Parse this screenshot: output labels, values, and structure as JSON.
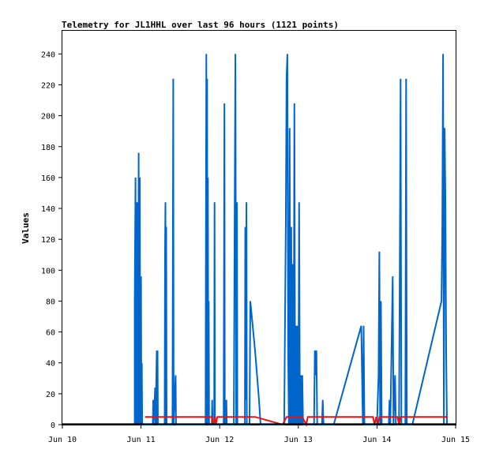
{
  "chart_data": {
    "type": "line",
    "title": "Telemetry for JL1HHL over last 96 hours (1121 points)",
    "xlabel": "",
    "ylabel": "Values",
    "x_ticks": [
      "Jun 10",
      "Jun 11",
      "Jun 12",
      "Jun 13",
      "Jun 14",
      "Jun 15"
    ],
    "x_range_days": [
      10,
      15
    ],
    "y_ticks": [
      0,
      20,
      40,
      60,
      80,
      100,
      120,
      140,
      160,
      180,
      200,
      220,
      240
    ],
    "ylim": [
      0,
      255
    ],
    "grid": false,
    "colors": {
      "series1": "#0066cc",
      "series2": "#ee1111",
      "series3": "#000000"
    },
    "series": [
      {
        "color": "#0066cc",
        "points": [
          [
            10.92,
            0
          ],
          [
            10.92,
            80
          ],
          [
            10.93,
            160
          ],
          [
            10.935,
            0
          ],
          [
            10.94,
            144
          ],
          [
            10.95,
            0
          ],
          [
            10.955,
            144
          ],
          [
            10.96,
            60
          ],
          [
            10.965,
            0
          ],
          [
            10.97,
            176
          ],
          [
            10.975,
            0
          ],
          [
            10.98,
            112
          ],
          [
            10.985,
            160
          ],
          [
            10.99,
            0
          ],
          [
            11.0,
            96
          ],
          [
            11.005,
            0
          ],
          [
            11.01,
            40
          ],
          [
            11.015,
            0
          ],
          [
            11.15,
            0
          ],
          [
            11.155,
            16
          ],
          [
            11.16,
            0
          ],
          [
            11.18,
            24
          ],
          [
            11.185,
            0
          ],
          [
            11.2,
            48
          ],
          [
            11.205,
            0
          ],
          [
            11.21,
            48
          ],
          [
            11.215,
            0
          ],
          [
            11.3,
            0
          ],
          [
            11.305,
            112
          ],
          [
            11.31,
            144
          ],
          [
            11.315,
            0
          ],
          [
            11.32,
            128
          ],
          [
            11.325,
            0
          ],
          [
            11.4,
            0
          ],
          [
            11.41,
            224
          ],
          [
            11.415,
            0
          ],
          [
            11.44,
            32
          ],
          [
            11.445,
            0
          ],
          [
            11.82,
            0
          ],
          [
            11.825,
            128
          ],
          [
            11.83,
            240
          ],
          [
            11.835,
            0
          ],
          [
            11.84,
            224
          ],
          [
            11.845,
            0
          ],
          [
            11.85,
            160
          ],
          [
            11.855,
            0
          ],
          [
            11.86,
            80
          ],
          [
            11.865,
            0
          ],
          [
            11.9,
            0
          ],
          [
            11.905,
            16
          ],
          [
            11.91,
            0
          ],
          [
            11.93,
            0
          ],
          [
            11.935,
            144
          ],
          [
            11.94,
            0
          ],
          [
            12.05,
            0
          ],
          [
            12.055,
            104
          ],
          [
            12.06,
            208
          ],
          [
            12.065,
            0
          ],
          [
            12.08,
            0
          ],
          [
            12.085,
            16
          ],
          [
            12.09,
            0
          ],
          [
            12.18,
            0
          ],
          [
            12.19,
            128
          ],
          [
            12.2,
            240
          ],
          [
            12.21,
            0
          ],
          [
            12.22,
            144
          ],
          [
            12.225,
            0
          ],
          [
            12.32,
            0
          ],
          [
            12.325,
            128
          ],
          [
            12.33,
            16
          ],
          [
            12.34,
            144
          ],
          [
            12.345,
            0
          ],
          [
            12.38,
            0
          ],
          [
            12.39,
            80
          ],
          [
            12.45,
            48
          ],
          [
            12.5,
            16
          ],
          [
            12.52,
            0
          ],
          [
            12.82,
            0
          ],
          [
            12.83,
            64
          ],
          [
            12.84,
            128
          ],
          [
            12.85,
            224
          ],
          [
            12.86,
            240
          ],
          [
            12.87,
            48
          ],
          [
            12.88,
            0
          ],
          [
            12.89,
            192
          ],
          [
            12.9,
            0
          ],
          [
            12.91,
            128
          ],
          [
            12.92,
            0
          ],
          [
            12.93,
            104
          ],
          [
            12.94,
            0
          ],
          [
            12.95,
            208
          ],
          [
            12.96,
            0
          ],
          [
            12.97,
            64
          ],
          [
            12.98,
            0
          ],
          [
            12.99,
            64
          ],
          [
            13.0,
            0
          ],
          [
            13.01,
            144
          ],
          [
            13.02,
            0
          ],
          [
            13.03,
            32
          ],
          [
            13.04,
            0
          ],
          [
            13.05,
            32
          ],
          [
            13.06,
            0
          ],
          [
            13.2,
            0
          ],
          [
            13.21,
            48
          ],
          [
            13.22,
            32
          ],
          [
            13.23,
            48
          ],
          [
            13.24,
            0
          ],
          [
            13.3,
            0
          ],
          [
            13.31,
            16
          ],
          [
            13.32,
            0
          ],
          [
            13.45,
            0
          ],
          [
            13.8,
            64
          ],
          [
            13.82,
            0
          ],
          [
            13.83,
            64
          ],
          [
            13.84,
            0
          ],
          [
            14.0,
            0
          ],
          [
            14.02,
            32
          ],
          [
            14.03,
            112
          ],
          [
            14.04,
            0
          ],
          [
            14.05,
            80
          ],
          [
            14.06,
            0
          ],
          [
            14.15,
            0
          ],
          [
            14.16,
            16
          ],
          [
            14.17,
            0
          ],
          [
            14.19,
            64
          ],
          [
            14.2,
            96
          ],
          [
            14.21,
            0
          ],
          [
            14.23,
            32
          ],
          [
            14.24,
            0
          ],
          [
            14.28,
            0
          ],
          [
            14.29,
            104
          ],
          [
            14.3,
            224
          ],
          [
            14.31,
            0
          ],
          [
            14.36,
            0
          ],
          [
            14.37,
            224
          ],
          [
            14.38,
            0
          ],
          [
            14.45,
            0
          ],
          [
            14.82,
            80
          ],
          [
            14.83,
            128
          ],
          [
            14.84,
            240
          ],
          [
            14.85,
            0
          ],
          [
            14.86,
            192
          ],
          [
            14.87,
            144
          ],
          [
            14.88,
            48
          ],
          [
            14.89,
            0
          ]
        ]
      },
      {
        "color": "#ee1111",
        "points": [
          [
            11.05,
            5
          ],
          [
            11.9,
            5
          ],
          [
            11.92,
            0
          ],
          [
            11.94,
            5
          ],
          [
            11.95,
            0
          ],
          [
            11.97,
            5
          ],
          [
            12.45,
            5
          ],
          [
            12.8,
            0
          ],
          [
            12.85,
            5
          ],
          [
            13.05,
            5
          ],
          [
            13.1,
            0
          ],
          [
            13.12,
            5
          ],
          [
            13.95,
            5
          ],
          [
            13.97,
            0
          ],
          [
            13.99,
            5
          ],
          [
            14.01,
            0
          ],
          [
            14.03,
            5
          ],
          [
            14.26,
            5
          ],
          [
            14.28,
            0
          ],
          [
            14.3,
            5
          ],
          [
            14.9,
            5
          ]
        ]
      },
      {
        "color": "#000000",
        "points": [
          [
            10.0,
            0.3
          ],
          [
            15.0,
            0.3
          ]
        ]
      }
    ]
  }
}
